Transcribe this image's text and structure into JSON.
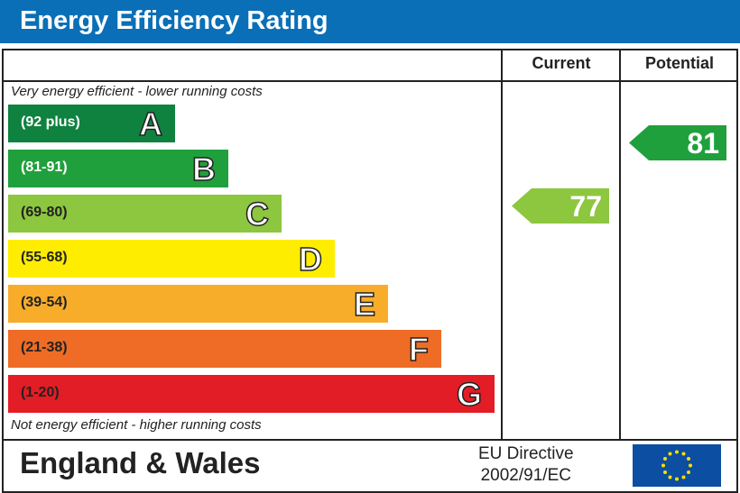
{
  "header": {
    "title": "Energy Efficiency Rating"
  },
  "columns": {
    "current": "Current",
    "potential": "Potential"
  },
  "notes": {
    "top": "Very energy efficient - lower running costs",
    "bottom": "Not energy efficient - higher running costs"
  },
  "footer": {
    "region": "England & Wales",
    "directive_line1": "EU Directive",
    "directive_line2": "2002/91/EC",
    "flag_icon": "eu-flag-icon"
  },
  "chart_data": {
    "type": "bar",
    "title": "Energy Efficiency Rating",
    "bands": [
      {
        "letter": "A",
        "range": "(92 plus)",
        "color": "#0f8240",
        "text_color": "#ffffff"
      },
      {
        "letter": "B",
        "range": "(81-91)",
        "color": "#20a03c",
        "text_color": "#ffffff"
      },
      {
        "letter": "C",
        "range": "(69-80)",
        "color": "#8dc63f",
        "text_color": "#222222"
      },
      {
        "letter": "D",
        "range": "(55-68)",
        "color": "#ffed00",
        "text_color": "#222222"
      },
      {
        "letter": "E",
        "range": "(39-54)",
        "color": "#f7ad2a",
        "text_color": "#222222"
      },
      {
        "letter": "F",
        "range": "(21-38)",
        "color": "#ee6c25",
        "text_color": "#222222"
      },
      {
        "letter": "G",
        "range": "(1-20)",
        "color": "#e31d25",
        "text_color": "#222222"
      }
    ],
    "current": {
      "value": 77,
      "band": "C",
      "color": "#8dc63f"
    },
    "potential": {
      "value": 81,
      "band": "B",
      "color": "#20a03c"
    }
  }
}
